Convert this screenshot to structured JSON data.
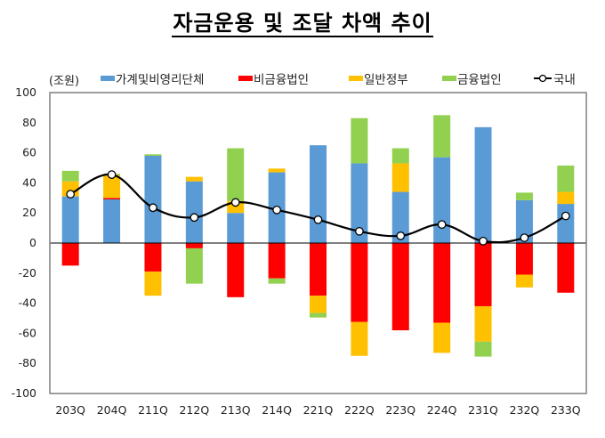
{
  "title": "자금운용 및 조달 차액 추이",
  "unit_label": "(조원)",
  "legend": [
    {
      "key": "household",
      "label": "가계및비영리단체",
      "color": "#5B9BD5",
      "icon": "bar-swatch"
    },
    {
      "key": "nonfinancial",
      "label": "비금융법인",
      "color": "#FF0000",
      "icon": "bar-swatch"
    },
    {
      "key": "government",
      "label": "일반정부",
      "color": "#FFC000",
      "icon": "bar-swatch"
    },
    {
      "key": "financial",
      "label": "금융법인",
      "color": "#92D050",
      "icon": "bar-swatch"
    },
    {
      "key": "domestic",
      "label": "국내",
      "color": "#000000",
      "icon": "line-circle-marker"
    }
  ],
  "chart_data": {
    "type": "bar",
    "subtype": "stacked-bar-with-line",
    "title": "자금운용 및 조달 차액 추이",
    "xlabel": "",
    "ylabel": "(조원)",
    "ylim": [
      -100,
      100
    ],
    "yticks": [
      100,
      80,
      60,
      40,
      20,
      0,
      -20,
      -40,
      -60,
      -80,
      -100
    ],
    "grid": false,
    "legend_position": "top",
    "categories": [
      "203Q",
      "204Q",
      "211Q",
      "212Q",
      "213Q",
      "214Q",
      "221Q",
      "222Q",
      "223Q",
      "224Q",
      "231Q",
      "232Q",
      "233Q"
    ],
    "series": [
      {
        "name": "가계및비영리단체",
        "type": "bar",
        "color": "#5B9BD5",
        "values": [
          31,
          29,
          58,
          41,
          20,
          47,
          65,
          53,
          34,
          57,
          77,
          28.5,
          26
        ]
      },
      {
        "name": "비금융법인",
        "type": "bar",
        "color": "#FF0000",
        "values": [
          -15,
          1,
          -19,
          -3.5,
          -36,
          -23.5,
          -35,
          -52.5,
          -58,
          -53,
          -42,
          -21,
          -33
        ]
      },
      {
        "name": "일반정부",
        "type": "bar",
        "color": "#FFC000",
        "values": [
          10,
          15,
          -16,
          3,
          8,
          2.5,
          -11.5,
          -22.5,
          19,
          -20,
          -23.5,
          -8.5,
          8
        ]
      },
      {
        "name": "금융법인",
        "type": "bar",
        "color": "#92D050",
        "values": [
          7,
          1,
          1,
          -23.5,
          35,
          -3.5,
          -3,
          30,
          10,
          28,
          -10,
          5,
          17.5
        ]
      },
      {
        "name": "국내",
        "type": "line",
        "color": "#000000",
        "marker": "circle",
        "values": [
          32.5,
          45.5,
          23.5,
          17,
          27,
          22,
          15.5,
          7.8,
          4.8,
          12.3,
          1.3,
          3.5,
          18
        ]
      }
    ]
  }
}
